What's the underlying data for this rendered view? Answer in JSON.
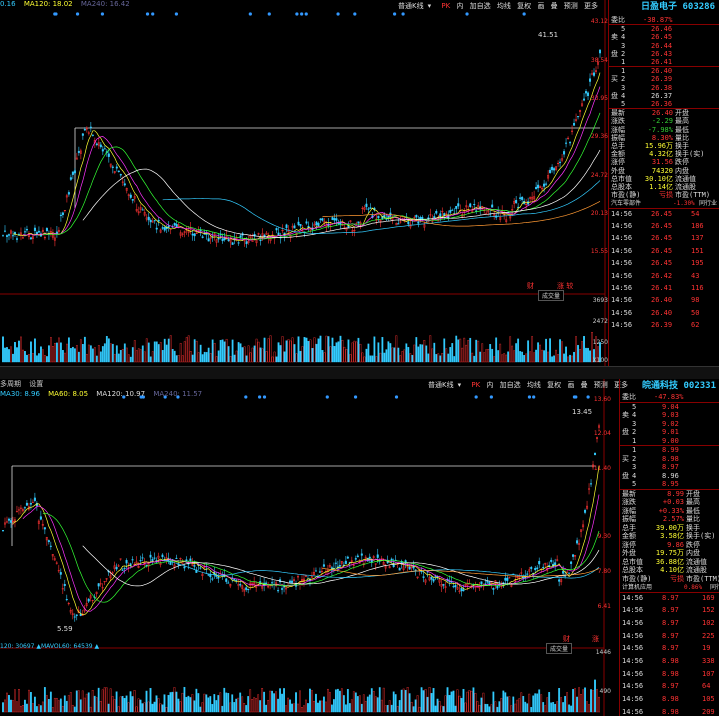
{
  "panel1": {
    "ma_labels": {
      "ma30": "0.16",
      "ma120": "MA120: 18.02",
      "ma240": "MA240: 16.42"
    },
    "toolbar": {
      "view": "普通K线",
      "arrow": "▾",
      "pk": "PK",
      "inner": "内",
      "addself": "加自选",
      "avg": "均线",
      "restore": "复权",
      "draw": "画",
      "mark": "叠",
      "predict": "预测",
      "more": "更多"
    },
    "stock": {
      "name": "日盈电子",
      "code": "603286"
    },
    "wb": {
      "label": "委比",
      "value": "-38.87%"
    },
    "sell_side": "卖盘",
    "buy_side": "买盘",
    "asks": [
      {
        "lvl": "5",
        "price": "26.46"
      },
      {
        "lvl": "4",
        "price": "26.45"
      },
      {
        "lvl": "3",
        "price": "26.44"
      },
      {
        "lvl": "2",
        "price": "26.43"
      },
      {
        "lvl": "1",
        "price": "26.41"
      }
    ],
    "bids": [
      {
        "lvl": "1",
        "price": "26.40"
      },
      {
        "lvl": "2",
        "price": "26.39"
      },
      {
        "lvl": "3",
        "price": "26.38"
      },
      {
        "lvl": "4",
        "price": "26.37"
      },
      {
        "lvl": "5",
        "price": "26.36"
      }
    ],
    "stats": [
      {
        "l": "最新",
        "v": "26.40",
        "l2": "开盘"
      },
      {
        "l": "涨跌",
        "v": "-2.29",
        "l2": "最高"
      },
      {
        "l": "涨幅",
        "v": "-7.98%",
        "l2": "最低"
      },
      {
        "l": "振幅",
        "v": "8.30%",
        "l2": "量比"
      },
      {
        "l": "总手",
        "v": "15.96万",
        "l2": "换手"
      },
      {
        "l": "金额",
        "v": "4.32亿",
        "l2": "换手(实)"
      },
      {
        "l": "涨停",
        "v": "31.56",
        "l2": "跌停"
      },
      {
        "l": "外盘",
        "v": "74320",
        "l2": "内盘"
      },
      {
        "l": "总市值",
        "v": "30.10亿",
        "l2": "流通值"
      },
      {
        "l": "总股本",
        "v": "1.14亿",
        "l2": "流通股"
      },
      {
        "l": "市盈(静)",
        "v": "亏损",
        "l2": "市盈(TTM)"
      }
    ],
    "sector": {
      "name": "汽车零部件",
      "value": "-1.30%",
      "extra": "同行业"
    },
    "trades": [
      {
        "t": "14:56",
        "p": "26.45",
        "v": "54"
      },
      {
        "t": "14:56",
        "p": "26.45",
        "v": "186"
      },
      {
        "t": "14:56",
        "p": "26.45",
        "v": "137"
      },
      {
        "t": "14:56",
        "p": "26.45",
        "v": "151"
      },
      {
        "t": "14:56",
        "p": "26.45",
        "v": "195"
      },
      {
        "t": "14:56",
        "p": "26.42",
        "v": "43"
      },
      {
        "t": "14:56",
        "p": "26.41",
        "v": "116"
      },
      {
        "t": "14:56",
        "p": "26.40",
        "v": "98"
      },
      {
        "t": "14:56",
        "p": "26.40",
        "v": "50"
      },
      {
        "t": "14:56",
        "p": "26.39",
        "v": "62"
      }
    ],
    "y_labels": [
      "43.12",
      "38.54",
      "33.95",
      "29.36",
      "24.72",
      "20.13",
      "15.55"
    ],
    "vol_labels": [
      "3693",
      "2472",
      "1250",
      "X100"
    ],
    "peak": "41.51",
    "vol_tag": "成交量",
    "marks": {
      "cai": "财",
      "zhang": "涨 较"
    }
  },
  "panel2": {
    "header": {
      "a": "多周期",
      "b": "设置"
    },
    "ma_labels": {
      "ma30": "MA30: 8.96",
      "ma60": "MA60: 8.05",
      "ma120": "MA120: 10.97",
      "ma240": "MA240: 11.57"
    },
    "toolbar": {
      "view": "普通K线",
      "arrow": "▾",
      "pk": "PK",
      "inner": "内",
      "addself": "加自选",
      "avg": "均线",
      "restore": "复权",
      "draw": "画",
      "mark": "叠",
      "predict": "预测",
      "more": "更多"
    },
    "stock": {
      "name": "皖通科技",
      "code": "002331"
    },
    "wb": {
      "label": "委比",
      "value": "-47.83%"
    },
    "sell_side": "卖盘",
    "buy_side": "买盘",
    "asks": [
      {
        "lvl": "5",
        "price": "9.04"
      },
      {
        "lvl": "4",
        "price": "9.03"
      },
      {
        "lvl": "3",
        "price": "9.02"
      },
      {
        "lvl": "2",
        "price": "9.01"
      },
      {
        "lvl": "1",
        "price": "9.00"
      }
    ],
    "bids": [
      {
        "lvl": "1",
        "price": "8.99"
      },
      {
        "lvl": "2",
        "price": "8.98"
      },
      {
        "lvl": "3",
        "price": "8.97"
      },
      {
        "lvl": "4",
        "price": "8.96"
      },
      {
        "lvl": "5",
        "price": "8.95"
      }
    ],
    "stats": [
      {
        "l": "最新",
        "v": "8.99",
        "l2": "开盘"
      },
      {
        "l": "涨跌",
        "v": "+0.03",
        "l2": "最高"
      },
      {
        "l": "涨幅",
        "v": "+0.33%",
        "l2": "最低"
      },
      {
        "l": "振幅",
        "v": "2.57%",
        "l2": "量比"
      },
      {
        "l": "总手",
        "v": "39.00万",
        "l2": "换手"
      },
      {
        "l": "金额",
        "v": "3.58亿",
        "l2": "换手(实)"
      },
      {
        "l": "涨停",
        "v": "9.86",
        "l2": "跌停"
      },
      {
        "l": "外盘",
        "v": "19.75万",
        "l2": "内盘"
      },
      {
        "l": "总市值",
        "v": "36.88亿",
        "l2": "流通值"
      },
      {
        "l": "总股本",
        "v": "4.10亿",
        "l2": "流通股"
      },
      {
        "l": "市盈(静)",
        "v": "亏损",
        "l2": "市盈(TTM)"
      }
    ],
    "sector": {
      "name": "计算机应用",
      "value": "0.86%",
      "extra": "同行"
    },
    "trades": [
      {
        "t": "14:56",
        "p": "8.97",
        "v": "169"
      },
      {
        "t": "14:56",
        "p": "8.97",
        "v": "152"
      },
      {
        "t": "14:56",
        "p": "8.97",
        "v": "102"
      },
      {
        "t": "14:56",
        "p": "8.97",
        "v": "225"
      },
      {
        "t": "14:56",
        "p": "8.97",
        "v": "19"
      },
      {
        "t": "14:56",
        "p": "8.98",
        "v": "338"
      },
      {
        "t": "14:56",
        "p": "8.98",
        "v": "107"
      },
      {
        "t": "14:56",
        "p": "8.97",
        "v": "64"
      },
      {
        "t": "14:56",
        "p": "8.98",
        "v": "105"
      },
      {
        "t": "14:56",
        "p": "8.98",
        "v": "209"
      }
    ],
    "y_labels": [
      "13.60",
      "12.04",
      "11.40",
      "9.30",
      "7.80",
      "6.41"
    ],
    "vol_labels": [
      "1446",
      "490"
    ],
    "peak": "13.45",
    "low": "5.59",
    "vol_ma": "120: 30697 ▲MAVOL60: 64539 ▲",
    "vol_tag": "成交量",
    "marks": {
      "cai": "财",
      "zhang": "涨"
    }
  }
}
